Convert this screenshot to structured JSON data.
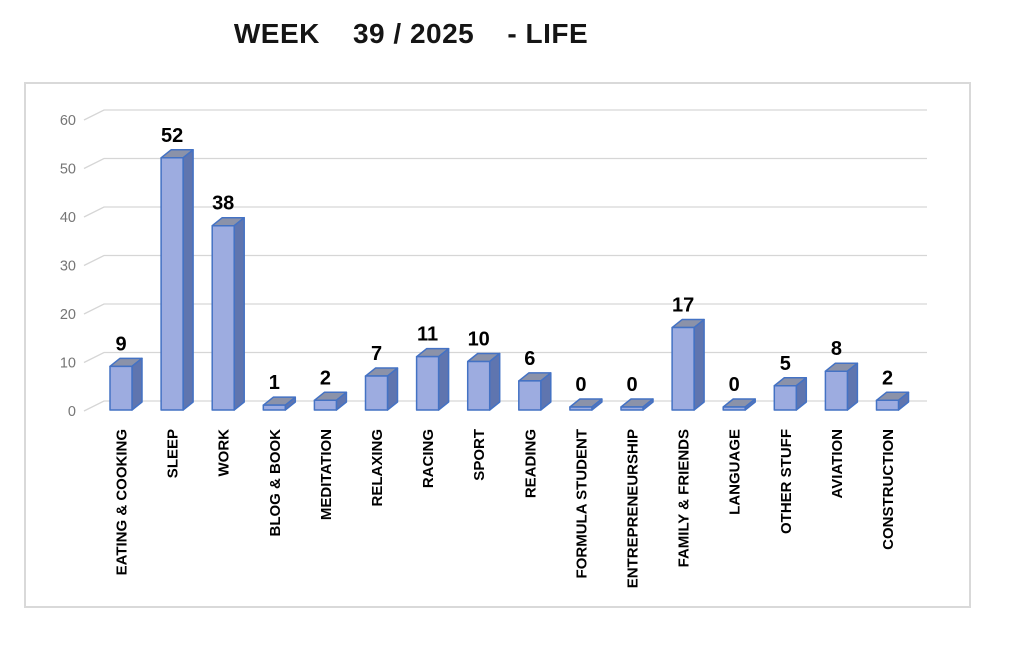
{
  "header": {
    "title_display": "WEEK    39 / 2025    - LIFE"
  },
  "colors": {
    "background": "#FFFFFF",
    "title_text": "#151515",
    "bar_front": "#9DACE0",
    "bar_top": "#8B92A9",
    "bar_side": "#5F75AF",
    "bar_border": "#4472C4",
    "gridline": "#D6D6D6",
    "axis_tick_text": "#757575",
    "value_label_text": "#000000",
    "category_label_text": "#000000",
    "plot_border": "#D9D9D9"
  },
  "chart_data": {
    "type": "bar",
    "style": "3d-column",
    "title": "WEEK 39 / 2025 - LIFE",
    "categories": [
      "EATING & COOKING",
      "SLEEP",
      "WORK",
      "BLOG & BOOK",
      "MEDITATION",
      "RELAXING",
      "RACING",
      "SPORT",
      "READING",
      "FORMULA STUDENT",
      "ENTREPRENEURSHIP",
      "FAMILY & FRIENDS",
      "LANGUAGE",
      "OTHER STUFF",
      "AVIATION",
      "CONSTRUCTION"
    ],
    "values": [
      9,
      52,
      38,
      1,
      2,
      7,
      11,
      10,
      6,
      0,
      0,
      17,
      0,
      5,
      8,
      2
    ],
    "xlabel": "",
    "ylabel": "",
    "ylim": [
      0,
      60
    ],
    "yticks": [
      0,
      10,
      20,
      30,
      40,
      50,
      60
    ],
    "grid": true,
    "legend": false,
    "data_labels": true
  }
}
